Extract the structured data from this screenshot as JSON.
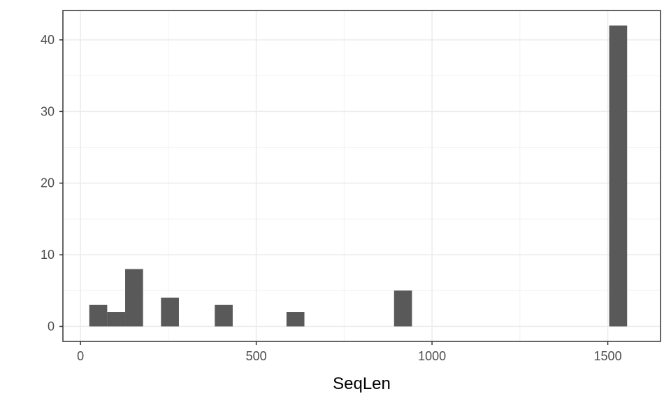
{
  "chart_data": {
    "type": "bar",
    "xlabel": "SeqLen",
    "ylabel": "",
    "title": "",
    "xlim": [
      -50,
      1650
    ],
    "ylim": [
      -2.1,
      44.1
    ],
    "x_ticks": [
      0,
      500,
      1000,
      1500
    ],
    "x_minor_ticks": [
      250,
      750,
      1250
    ],
    "y_ticks": [
      0,
      10,
      20,
      30,
      40
    ],
    "y_minor_ticks": [
      5,
      15,
      25,
      35
    ],
    "bin_width": 51,
    "bins": [
      {
        "x0": 25,
        "x1": 76,
        "count": 3
      },
      {
        "x0": 76,
        "x1": 127,
        "count": 2
      },
      {
        "x0": 127,
        "x1": 178,
        "count": 8
      },
      {
        "x0": 229,
        "x1": 280,
        "count": 4
      },
      {
        "x0": 382,
        "x1": 433,
        "count": 3
      },
      {
        "x0": 586,
        "x1": 637,
        "count": 2
      },
      {
        "x0": 892,
        "x1": 943,
        "count": 5
      },
      {
        "x0": 1504,
        "x1": 1555,
        "count": 42
      }
    ],
    "grid": true,
    "colors": {
      "bar": "#595959",
      "panel_border": "#333333",
      "grid_major": "#ebebeb",
      "grid_minor": "#f2f2f2",
      "tick_label": "#4d4d4d"
    }
  }
}
